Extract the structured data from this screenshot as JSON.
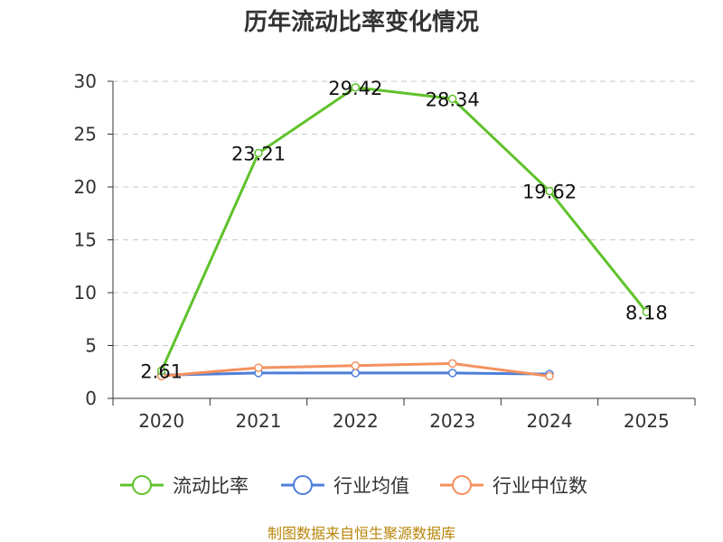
{
  "chart_data": {
    "type": "line",
    "title": "历年流动比率变化情况",
    "categories": [
      "2020",
      "2021",
      "2022",
      "2023",
      "2024",
      "2025"
    ],
    "ylim": [
      0,
      30
    ],
    "yticks": [
      0,
      5,
      10,
      15,
      20,
      25,
      30
    ],
    "grid": true,
    "legend_position": "bottom",
    "series": [
      {
        "name": "流动比率",
        "color": "#5fc22a",
        "values": [
          2.61,
          23.21,
          29.42,
          28.34,
          19.62,
          8.18
        ],
        "labels": [
          "2.61",
          "23.21",
          "29.42",
          "28.34",
          "19.62",
          "8.18"
        ]
      },
      {
        "name": "行业均值",
        "color": "#4e7fd8",
        "values": [
          2.2,
          2.4,
          2.4,
          2.4,
          2.3,
          null
        ],
        "labels": []
      },
      {
        "name": "行业中位数",
        "color": "#f4915e",
        "values": [
          2.1,
          2.9,
          3.1,
          3.3,
          2.1,
          null
        ],
        "labels": []
      }
    ],
    "source": "制图数据来自恒生聚源数据库"
  }
}
